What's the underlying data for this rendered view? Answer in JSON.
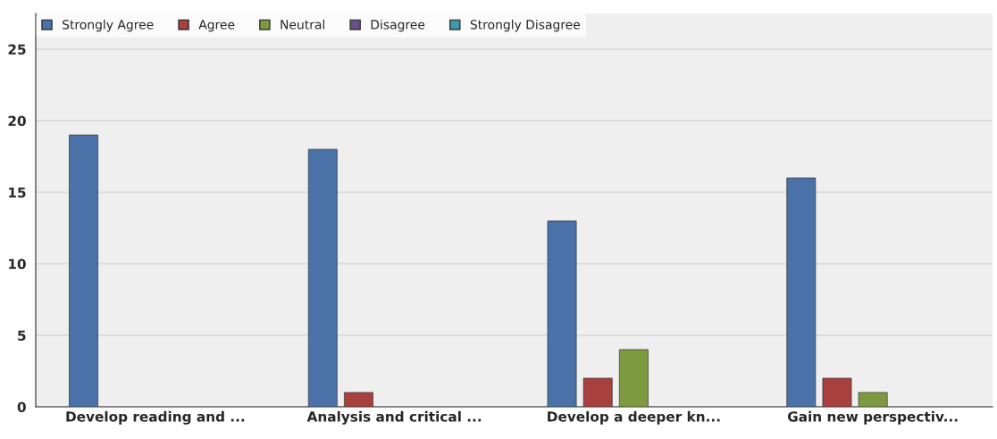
{
  "chart_data": {
    "type": "bar",
    "categories": [
      "Develop reading and ...",
      "Analysis and critical ...",
      "Develop a deeper kn...",
      "Gain new perspectiv..."
    ],
    "series": [
      {
        "name": "Strongly Agree",
        "color": "#4a72a8",
        "values": [
          19,
          18,
          13,
          16
        ]
      },
      {
        "name": "Agree",
        "color": "#a8403e",
        "values": [
          0,
          1,
          2,
          2
        ]
      },
      {
        "name": "Neutral",
        "color": "#7e9a40",
        "values": [
          0,
          0,
          4,
          1
        ]
      },
      {
        "name": "Disagree",
        "color": "#6a4f8a",
        "values": [
          0,
          0,
          0,
          0
        ]
      },
      {
        "name": "Strongly Disagree",
        "color": "#3d9aaa",
        "values": [
          0,
          0,
          0,
          0
        ]
      }
    ],
    "ylim": [
      0,
      27.5
    ],
    "yticks": [
      0,
      5,
      10,
      15,
      20,
      25
    ],
    "grid": "y",
    "legend": "top left"
  }
}
